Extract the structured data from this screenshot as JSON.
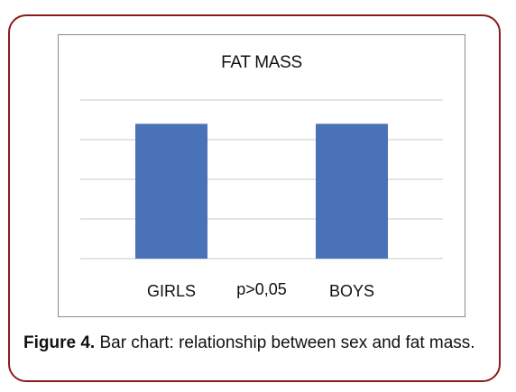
{
  "chart_data": {
    "type": "bar",
    "title": "FAT MASS",
    "categories": [
      "GIRLS",
      "BOYS"
    ],
    "values": [
      3.4,
      3.4
    ],
    "ylim": [
      0,
      4
    ],
    "grid": true,
    "bar_color": "#4a72b8",
    "annotation": "p>0,05"
  },
  "caption": {
    "label": "Figure 4.",
    "text": " Bar chart: relationship between sex and fat mass."
  },
  "colors": {
    "frame": "#8b1a1a",
    "gridline": "#c8c8c8"
  }
}
